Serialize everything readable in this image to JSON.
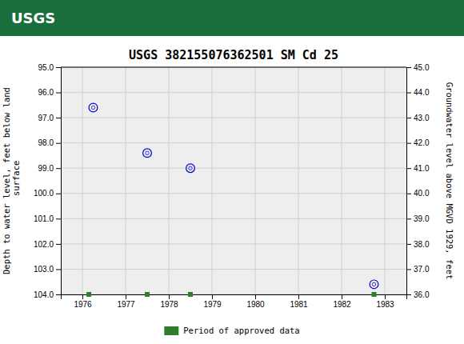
{
  "chart_data": {
    "type": "scatter",
    "title": "USGS 382155076362501 SM Cd  25",
    "annotations": [
      {
        "text": "USGS"
      }
    ],
    "ylabel": "Depth to water level, feet below land\n surface",
    "y2label": "Groundwater level above MGVD 1929, feet",
    "xlim": [
      1975.5,
      1983.5
    ],
    "xticks": [
      1976,
      1977,
      1978,
      1979,
      1980,
      1981,
      1982,
      1983
    ],
    "ylim": [
      104.0,
      95.0
    ],
    "yticks": [
      {
        "value": 95,
        "label": "95.0"
      },
      {
        "value": 96,
        "label": "96.0"
      },
      {
        "value": 97,
        "label": "97.0"
      },
      {
        "value": 98,
        "label": "98.0"
      },
      {
        "value": 99,
        "label": "99.0"
      },
      {
        "value": 100,
        "label": "100.0"
      },
      {
        "value": 101,
        "label": "101.0"
      },
      {
        "value": 102,
        "label": "102.0"
      },
      {
        "value": 103,
        "label": "103.0"
      },
      {
        "value": 104,
        "label": "104.0"
      }
    ],
    "y2lim": [
      36.0,
      45.0
    ],
    "y2ticks": [
      {
        "value": 36,
        "label": "36.0"
      },
      {
        "value": 37,
        "label": "37.0"
      },
      {
        "value": 38,
        "label": "38.0"
      },
      {
        "value": 39,
        "label": "39.0"
      },
      {
        "value": 40,
        "label": "40.0"
      },
      {
        "value": 41,
        "label": "41.0"
      },
      {
        "value": 42,
        "label": "42.0"
      },
      {
        "value": 43,
        "label": "43.0"
      },
      {
        "value": 44,
        "label": "44.0"
      },
      {
        "value": 45,
        "label": "45.0"
      }
    ],
    "grid": true,
    "legend": "bottom",
    "series": [
      {
        "type": "scatter",
        "marker": "circle",
        "color": "#0000CC",
        "x": [
          1976.25,
          1977.5,
          1978.5,
          1982.75
        ],
        "values": [
          96.6,
          98.4,
          99.0,
          103.6
        ]
      },
      {
        "name": "Period of approved data",
        "type": "scatter",
        "marker": "square",
        "color": "#2e7d2e",
        "x": [
          1976.15,
          1977.5,
          1978.5,
          1982.75
        ],
        "values": [
          104.0,
          104.0,
          104.0,
          104.0
        ]
      }
    ]
  }
}
